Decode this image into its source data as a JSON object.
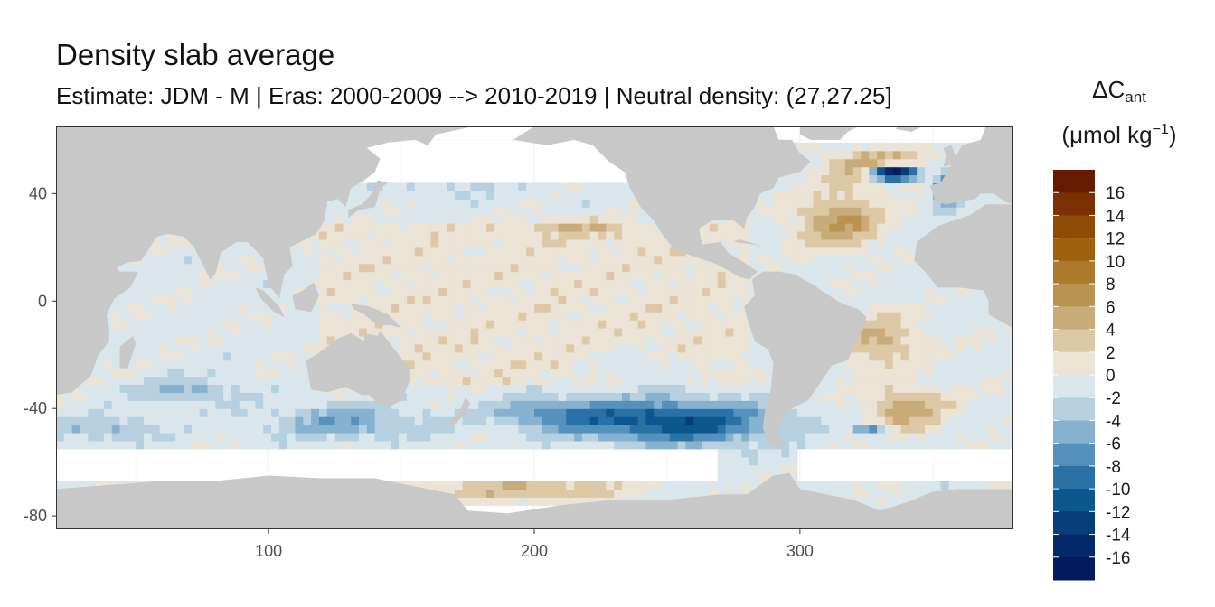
{
  "chart_data": {
    "type": "heatmap",
    "title": "Density slab average",
    "subtitle": "Estimate: JDM - M | Eras: 2000-2009 --> 2010-2019 | Neutral density: (27,27.25]",
    "legend_title_main": "ΔC",
    "legend_title_sub": "ant",
    "legend_unit_main": "(μmol kg",
    "legend_unit_sup": "−1",
    "legend_unit_close": ")",
    "xlim": [
      20,
      380
    ],
    "ylim": [
      -85,
      65
    ],
    "x_ticks": [
      100,
      200,
      300
    ],
    "x_tick_labels": [
      "100",
      "200",
      "300"
    ],
    "y_ticks": [
      40,
      0,
      -40,
      -80
    ],
    "y_tick_labels": [
      "40",
      "0",
      "-40",
      "-80"
    ],
    "grid": true,
    "legend_position": "right",
    "colorbar_bins": [
      {
        "range": [
          16,
          18
        ],
        "color": "#661a00"
      },
      {
        "range": [
          14,
          16
        ],
        "color": "#7d3004"
      },
      {
        "range": [
          12,
          14
        ],
        "color": "#8f4a06"
      },
      {
        "range": [
          10,
          12
        ],
        "color": "#9e620f"
      },
      {
        "range": [
          8,
          10
        ],
        "color": "#ab7a2c"
      },
      {
        "range": [
          6,
          8
        ],
        "color": "#b9934f"
      },
      {
        "range": [
          4,
          6
        ],
        "color": "#c8ab78"
      },
      {
        "range": [
          2,
          4
        ],
        "color": "#dcc8a4"
      },
      {
        "range": [
          0,
          2
        ],
        "color": "#ebe3d5"
      },
      {
        "range": [
          -2,
          0
        ],
        "color": "#dbe6ec"
      },
      {
        "range": [
          -4,
          -2
        ],
        "color": "#b6d0e0"
      },
      {
        "range": [
          -6,
          -4
        ],
        "color": "#86b1cf"
      },
      {
        "range": [
          -8,
          -6
        ],
        "color": "#5690bd"
      },
      {
        "range": [
          -10,
          -8
        ],
        "color": "#2a72a6"
      },
      {
        "range": [
          -12,
          -10
        ],
        "color": "#0b5790"
      },
      {
        "range": [
          -14,
          -12
        ],
        "color": "#063d7a"
      },
      {
        "range": [
          -16,
          -14
        ],
        "color": "#04296b"
      },
      {
        "range": [
          -18,
          -16
        ],
        "color": "#021b5c"
      }
    ],
    "colorbar_labels": [
      "16",
      "14",
      "12",
      "10",
      "8",
      "6",
      "4",
      "2",
      "0",
      "-2",
      "-4",
      "-6",
      "-8",
      "-10",
      "-12",
      "-14",
      "-16"
    ],
    "colors": {
      "land": "#c8c8c8",
      "no_data": "#ffffff",
      "panel_border": "#333333"
    }
  }
}
